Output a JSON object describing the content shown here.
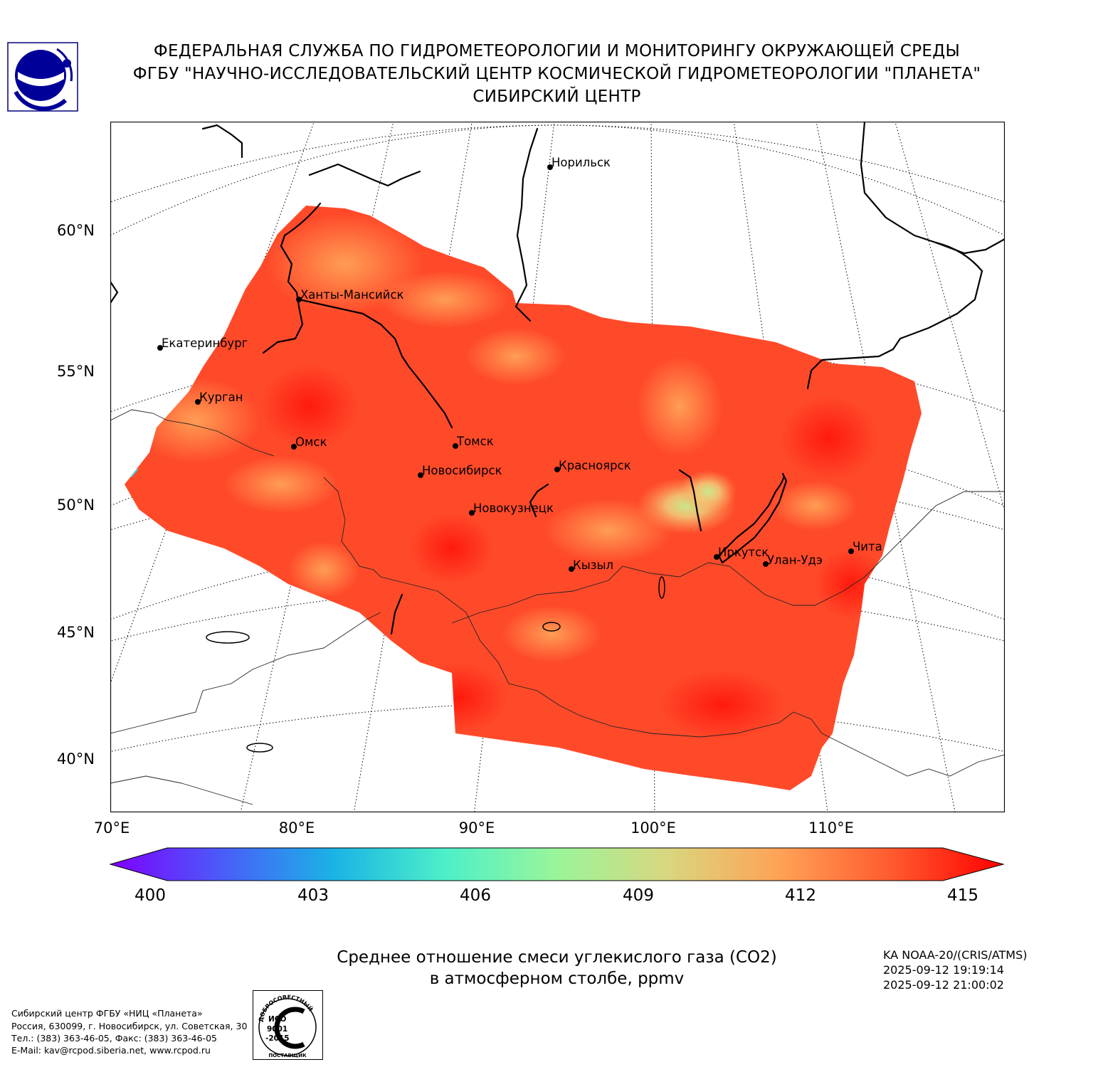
{
  "header": {
    "line1": "ФЕДЕРАЛЬНАЯ СЛУЖБА ПО ГИДРОМЕТЕОРОЛОГИИ И МОНИТОРИНГУ ОКРУЖАЮЩЕЙ СРЕДЫ",
    "line2": "ФГБУ \"НАУЧНО-ИССЛЕДОВАТЕЛЬСКИЙ ЦЕНТР КОСМИЧЕСКОЙ ГИДРОМЕТЕОРОЛОГИИ \"ПЛАНЕТА\"",
    "line3": "СИБИРСКИЙ ЦЕНТР"
  },
  "map": {
    "lat_labels": [
      "60°N",
      "55°N",
      "50°N",
      "45°N",
      "40°N"
    ],
    "lon_labels": [
      "70°E",
      "80°E",
      "90°E",
      "100°E",
      "110°E"
    ],
    "cities": [
      {
        "name": "Норильск"
      },
      {
        "name": "Ханты-Мансийск"
      },
      {
        "name": "Екатеринбург"
      },
      {
        "name": "Курган"
      },
      {
        "name": "Омск"
      },
      {
        "name": "Томск"
      },
      {
        "name": "Новосибирск"
      },
      {
        "name": "Красноярск"
      },
      {
        "name": "Новокузнецк"
      },
      {
        "name": "Кызыл"
      },
      {
        "name": "Иркутск"
      },
      {
        "name": "Улан-Удэ"
      },
      {
        "name": "Чита"
      }
    ]
  },
  "colorbar": {
    "min": 400,
    "max": 415,
    "labels": [
      "400",
      "403",
      "406",
      "409",
      "412",
      "415"
    ],
    "colors": [
      "#7f00ff",
      "#4a5cf8",
      "#1ab3e6",
      "#4cf0c8",
      "#9af59a",
      "#d9d67f",
      "#ffa256",
      "#ff5a2e",
      "#ff0000"
    ]
  },
  "caption": {
    "line1": "Среднее отношение смеси углекислого газа (CO2)",
    "line2": "в атмосферном столбе, ppmv"
  },
  "satellite": {
    "instrument": "KA NOAA-20/(CRIS/ATMS)",
    "time_start": "2025-09-12 19:19:14",
    "time_end": "2025-09-12 21:00:02"
  },
  "footer": {
    "line1": "Сибирский центр ФГБУ «НИЦ «Планета»",
    "line2": "Россия, 630099, г. Новосибирск, ул. Советская, 30",
    "line3": "Тел.: (383) 363-46-05, Факс: (383) 363-46-05",
    "line4": "E-Mail: kav@rcpod.siberia.net, www.rcpod.ru"
  },
  "iso_badge": {
    "top_text": "ДОБРОСОВЕСТНЫЙ",
    "bottom_text": "ПОСТАВЩИК",
    "line1": "ИСО",
    "line2": "9001",
    "line3": "-2015"
  }
}
